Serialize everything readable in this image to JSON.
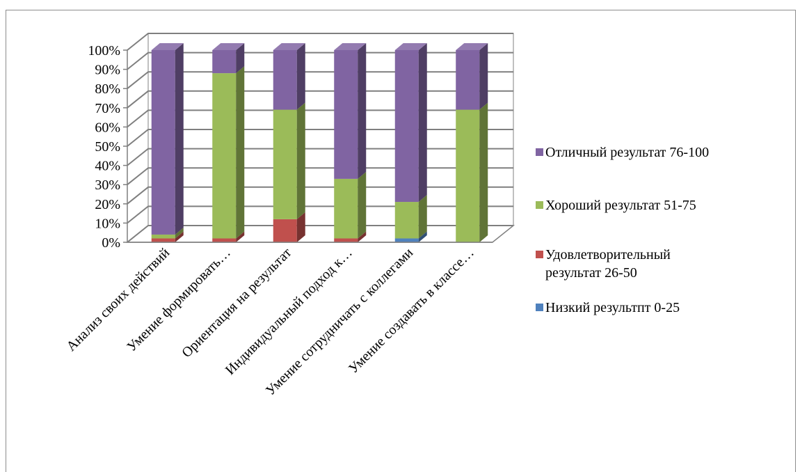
{
  "chart_data": {
    "type": "bar",
    "stacked": true,
    "percent": true,
    "three_d": true,
    "categories": [
      "Анализ своих действий",
      "Умение формировать…",
      "Ориентация на результат",
      "Индивидуальный подход к…",
      "Умение сотрудничать с коллегами",
      "Умение создавать в классе…"
    ],
    "series": [
      {
        "name": "Низкий результпт 0-25",
        "color": "#4F81BD",
        "values": [
          0,
          0,
          0,
          0,
          2,
          0
        ]
      },
      {
        "name": "Удовлетворительный результат 26-50",
        "color": "#C0504D",
        "values": [
          2,
          2,
          12,
          2,
          0,
          0
        ]
      },
      {
        "name": "Хороший результат 51-75",
        "color": "#9BBB59",
        "values": [
          2,
          86,
          57,
          31,
          19,
          69
        ]
      },
      {
        "name": "Отличный результат 76-100",
        "color": "#8064A2",
        "values": [
          96,
          12,
          31,
          67,
          79,
          31
        ]
      }
    ],
    "ytick_labels": [
      "0%",
      "10%",
      "20%",
      "30%",
      "40%",
      "50%",
      "60%",
      "70%",
      "80%",
      "90%",
      "100%"
    ],
    "ylim": [
      0,
      100
    ],
    "grid": true,
    "legend_position": "right",
    "legend_order": [
      3,
      2,
      1,
      0
    ]
  }
}
